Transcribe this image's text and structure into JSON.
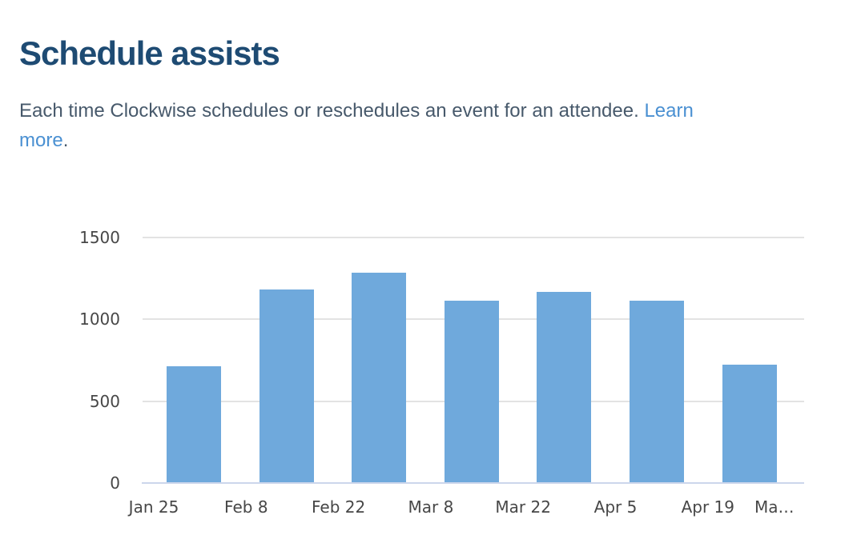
{
  "page": {
    "title": "Schedule assists",
    "description": {
      "text": "Each time Clockwise schedules or reschedules an event for an attendee.",
      "link_line1": "Learn",
      "link_line2": "more",
      "after_link": "."
    }
  },
  "colors": {
    "title": "#1e4b73",
    "body_text": "#47596b",
    "link": "#4a90d2",
    "bar": "#6fa9dc",
    "gridline": "#e3e3e3",
    "axis_line": "#ccd6eb",
    "axis_label": "#474747"
  },
  "chart_data": {
    "type": "bar",
    "title": "Schedule assists",
    "x_tick_labels": [
      "Jan 25",
      "Feb 8",
      "Feb 22",
      "Mar 8",
      "Mar 22",
      "Apr 5",
      "Apr 19",
      "Ma…"
    ],
    "bucket_start_dates": [
      "Jan 25",
      "Feb 8",
      "Feb 22",
      "Mar 8",
      "Mar 22",
      "Apr 5",
      "Apr 19"
    ],
    "values": [
      715,
      1180,
      1285,
      1115,
      1170,
      1115,
      725
    ],
    "y_ticks": [
      0,
      500,
      1000,
      1500
    ],
    "ylim": [
      0,
      1500
    ],
    "xlabel": "",
    "ylabel": "",
    "grid": true,
    "legend": false,
    "note": "Each bar covers a two-week bucket and is drawn between its start and end date ticks"
  }
}
